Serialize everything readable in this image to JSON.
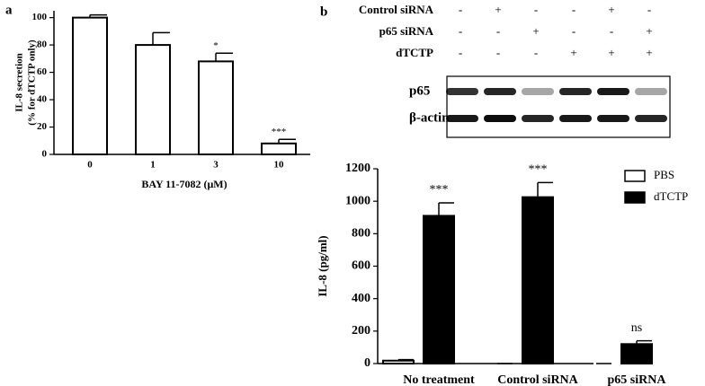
{
  "chart_data": [
    {
      "type": "bar",
      "panel": "a",
      "ylabel": [
        "IL-8 secretion",
        "(% for dTCTP only)"
      ],
      "xlabel": "BAY 11-7082 (μM)",
      "categories": [
        "0",
        "1",
        "3",
        "10"
      ],
      "values": [
        100,
        80,
        68,
        8
      ],
      "errors": [
        2,
        9,
        6,
        3
      ],
      "annotations": [
        null,
        null,
        "*",
        "***"
      ],
      "color": "#ffffff",
      "ylim": [
        0,
        105
      ],
      "yticks": [
        0,
        20,
        40,
        60,
        80,
        100
      ]
    },
    {
      "type": "bar",
      "panel": "b",
      "ylabel": "IL-8 (pg/ml)",
      "categories": [
        "No treatment",
        "Control siRNA",
        "p65 siRNA"
      ],
      "series": [
        {
          "name": "PBS",
          "color": "#ffffff",
          "values": [
            18,
            0,
            0
          ],
          "errors": [
            6,
            0,
            0
          ],
          "annotations": [
            null,
            null,
            null
          ]
        },
        {
          "name": "dTCTP",
          "color": "#000000",
          "values": [
            910,
            1025,
            120
          ],
          "errors": [
            80,
            90,
            20
          ],
          "annotations": [
            "***",
            "***",
            "ns"
          ]
        }
      ],
      "ylim": [
        0,
        1200
      ],
      "yticks": [
        0,
        200,
        400,
        600,
        800,
        1000,
        1200
      ],
      "legend": "top-right"
    }
  ],
  "blot": {
    "conditions": [
      {
        "name": "Control siRNA",
        "signs": [
          "-",
          "+",
          "-",
          "-",
          "+",
          "-"
        ]
      },
      {
        "name": "p65 siRNA",
        "signs": [
          "-",
          "-",
          "+",
          "-",
          "-",
          "+"
        ]
      },
      {
        "name": "dTCTP",
        "signs": [
          "-",
          "-",
          "-",
          "+",
          "+",
          "+"
        ]
      }
    ],
    "bands": [
      {
        "name": "p65",
        "intensity": [
          0.8,
          0.85,
          0.35,
          0.85,
          0.9,
          0.35
        ]
      },
      {
        "name": "β-actin",
        "intensity": [
          0.9,
          0.95,
          0.85,
          0.9,
          0.9,
          0.85
        ]
      }
    ]
  }
}
